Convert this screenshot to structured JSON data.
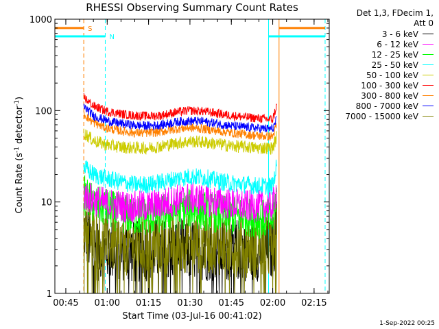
{
  "chart_data": {
    "type": "line",
    "title": "RHESSI Observing Summary Count Rates",
    "xlabel": "Start Time (03-Jul-16 00:41:02)",
    "ylabel": "Count Rate (s-1 detector-1)",
    "ylabel_parts": {
      "pre": "Count Rate (s",
      "sup1": "-1",
      "mid": " detector",
      "sup2": "-1",
      "post": ")"
    },
    "yscale": "log",
    "ylim": [
      1,
      1000
    ],
    "y_ticks": [
      {
        "value": 1,
        "label": "1"
      },
      {
        "value": 10,
        "label": "10"
      },
      {
        "value": 100,
        "label": "100"
      },
      {
        "value": 1000,
        "label": "1000"
      }
    ],
    "xlim_minutes": [
      41.03,
      140.5
    ],
    "x_ticks": [
      {
        "minute": 45,
        "label": "00:45"
      },
      {
        "minute": 60,
        "label": "01:00"
      },
      {
        "minute": 75,
        "label": "01:15"
      },
      {
        "minute": 90,
        "label": "01:30"
      },
      {
        "minute": 105,
        "label": "01:45"
      },
      {
        "minute": 120,
        "label": "02:00"
      },
      {
        "minute": 135,
        "label": "02:15"
      }
    ],
    "x_minutes": [
      51.5,
      55,
      60,
      65,
      70,
      75,
      80,
      85,
      90,
      95,
      100,
      105,
      110,
      115,
      120,
      121.5
    ],
    "series": [
      {
        "name": "3 - 6 keV",
        "color": "#000000",
        "values": [
          5.0,
          3.0,
          3.0,
          3.0,
          2.8,
          3.0,
          3.0,
          3.0,
          3.0,
          3.0,
          3.0,
          3.0,
          3.0,
          3.0,
          3.0,
          5.0
        ]
      },
      {
        "name": "6 - 12 keV",
        "color": "#ff00ff",
        "values": [
          12,
          10.5,
          9.5,
          9.0,
          8.8,
          9.0,
          9.5,
          10.5,
          11.0,
          10.5,
          10.0,
          9.5,
          9.0,
          9.0,
          9.0,
          14
        ]
      },
      {
        "name": "12 - 25 keV",
        "color": "#00ff00",
        "values": [
          12,
          9.5,
          8.5,
          7.5,
          7.0,
          7.0,
          7.5,
          8.0,
          8.5,
          8.0,
          7.5,
          7.0,
          7.0,
          6.5,
          6.5,
          13
        ]
      },
      {
        "name": "25 - 50 keV",
        "color": "#00ffff",
        "values": [
          24,
          20,
          18,
          16.5,
          15.5,
          15.5,
          16.5,
          18,
          19,
          18.5,
          17,
          16,
          15.5,
          15,
          15,
          26
        ]
      },
      {
        "name": "50 - 100 keV",
        "color": "#cccc00",
        "values": [
          57,
          47,
          42,
          40,
          39,
          39,
          41,
          44,
          46,
          45,
          43,
          41,
          40,
          39,
          39,
          52
        ]
      },
      {
        "name": "100 - 300 keV",
        "color": "#ff0000",
        "values": [
          140,
          112,
          98,
          92,
          88,
          87,
          89,
          96,
          100,
          98,
          93,
          88,
          85,
          82,
          80,
          115
        ]
      },
      {
        "name": "300 - 800 keV",
        "color": "#ff8000",
        "values": [
          92,
          74,
          64,
          60,
          57,
          57,
          59,
          63,
          65,
          63,
          60,
          57,
          55,
          53,
          52,
          70
        ]
      },
      {
        "name": "800 - 7000 keV",
        "color": "#0000ff",
        "values": [
          110,
          88,
          77,
          72,
          69,
          68,
          70,
          75,
          77,
          76,
          72,
          68,
          66,
          64,
          63,
          80
        ]
      },
      {
        "name": "7000 - 15000 keV",
        "color": "#808000",
        "values": [
          6.5,
          4.0,
          3.8,
          3.5,
          3.3,
          3.3,
          3.5,
          3.6,
          3.7,
          3.6,
          3.5,
          3.4,
          3.3,
          3.2,
          3.2,
          7.5
        ]
      }
    ],
    "annotations": [
      {
        "label": "S",
        "color": "#ff8000",
        "y": 800,
        "line_from": 41.03,
        "line_to": 51.5,
        "line_from2": 122.3,
        "line_to2": 139
      },
      {
        "label": "N",
        "color": "#00ffff",
        "y": 650,
        "line_from": 41.03,
        "line_to": 59.3,
        "line_from2": 118.5,
        "line_to2": 139
      }
    ],
    "vertical_markers": [
      {
        "minute": 51.5,
        "color": "#ff8000",
        "style": "dashed"
      },
      {
        "minute": 59.3,
        "color": "#00ffff",
        "style": "dashed"
      },
      {
        "minute": 41.03,
        "color": "#00ffff",
        "style": "solid"
      },
      {
        "minute": 118.5,
        "color": "#00ffff",
        "style": "solid"
      },
      {
        "minute": 122.3,
        "color": "#ff8000",
        "style": "solid"
      },
      {
        "minute": 139,
        "color": "#00ffff",
        "style": "dashed"
      }
    ]
  },
  "legend": {
    "header": [
      "Det 1,3, FDecim 1,",
      "Att 0"
    ],
    "items": [
      {
        "label": "3 - 6 keV",
        "color": "#000000"
      },
      {
        "label": "6 - 12 keV",
        "color": "#ff00ff"
      },
      {
        "label": "12 - 25 keV",
        "color": "#00ff00"
      },
      {
        "label": "25 - 50 keV",
        "color": "#00ffff"
      },
      {
        "label": "50 - 100 keV",
        "color": "#cccc00"
      },
      {
        "label": "100 - 300 keV",
        "color": "#ff0000"
      },
      {
        "label": "300 - 800 keV",
        "color": "#ff8000"
      },
      {
        "label": "800 - 7000 keV",
        "color": "#0000ff"
      },
      {
        "label": "7000 - 15000 keV",
        "color": "#808000"
      }
    ]
  },
  "footer": {
    "date": "1-Sep-2022 00:25"
  }
}
